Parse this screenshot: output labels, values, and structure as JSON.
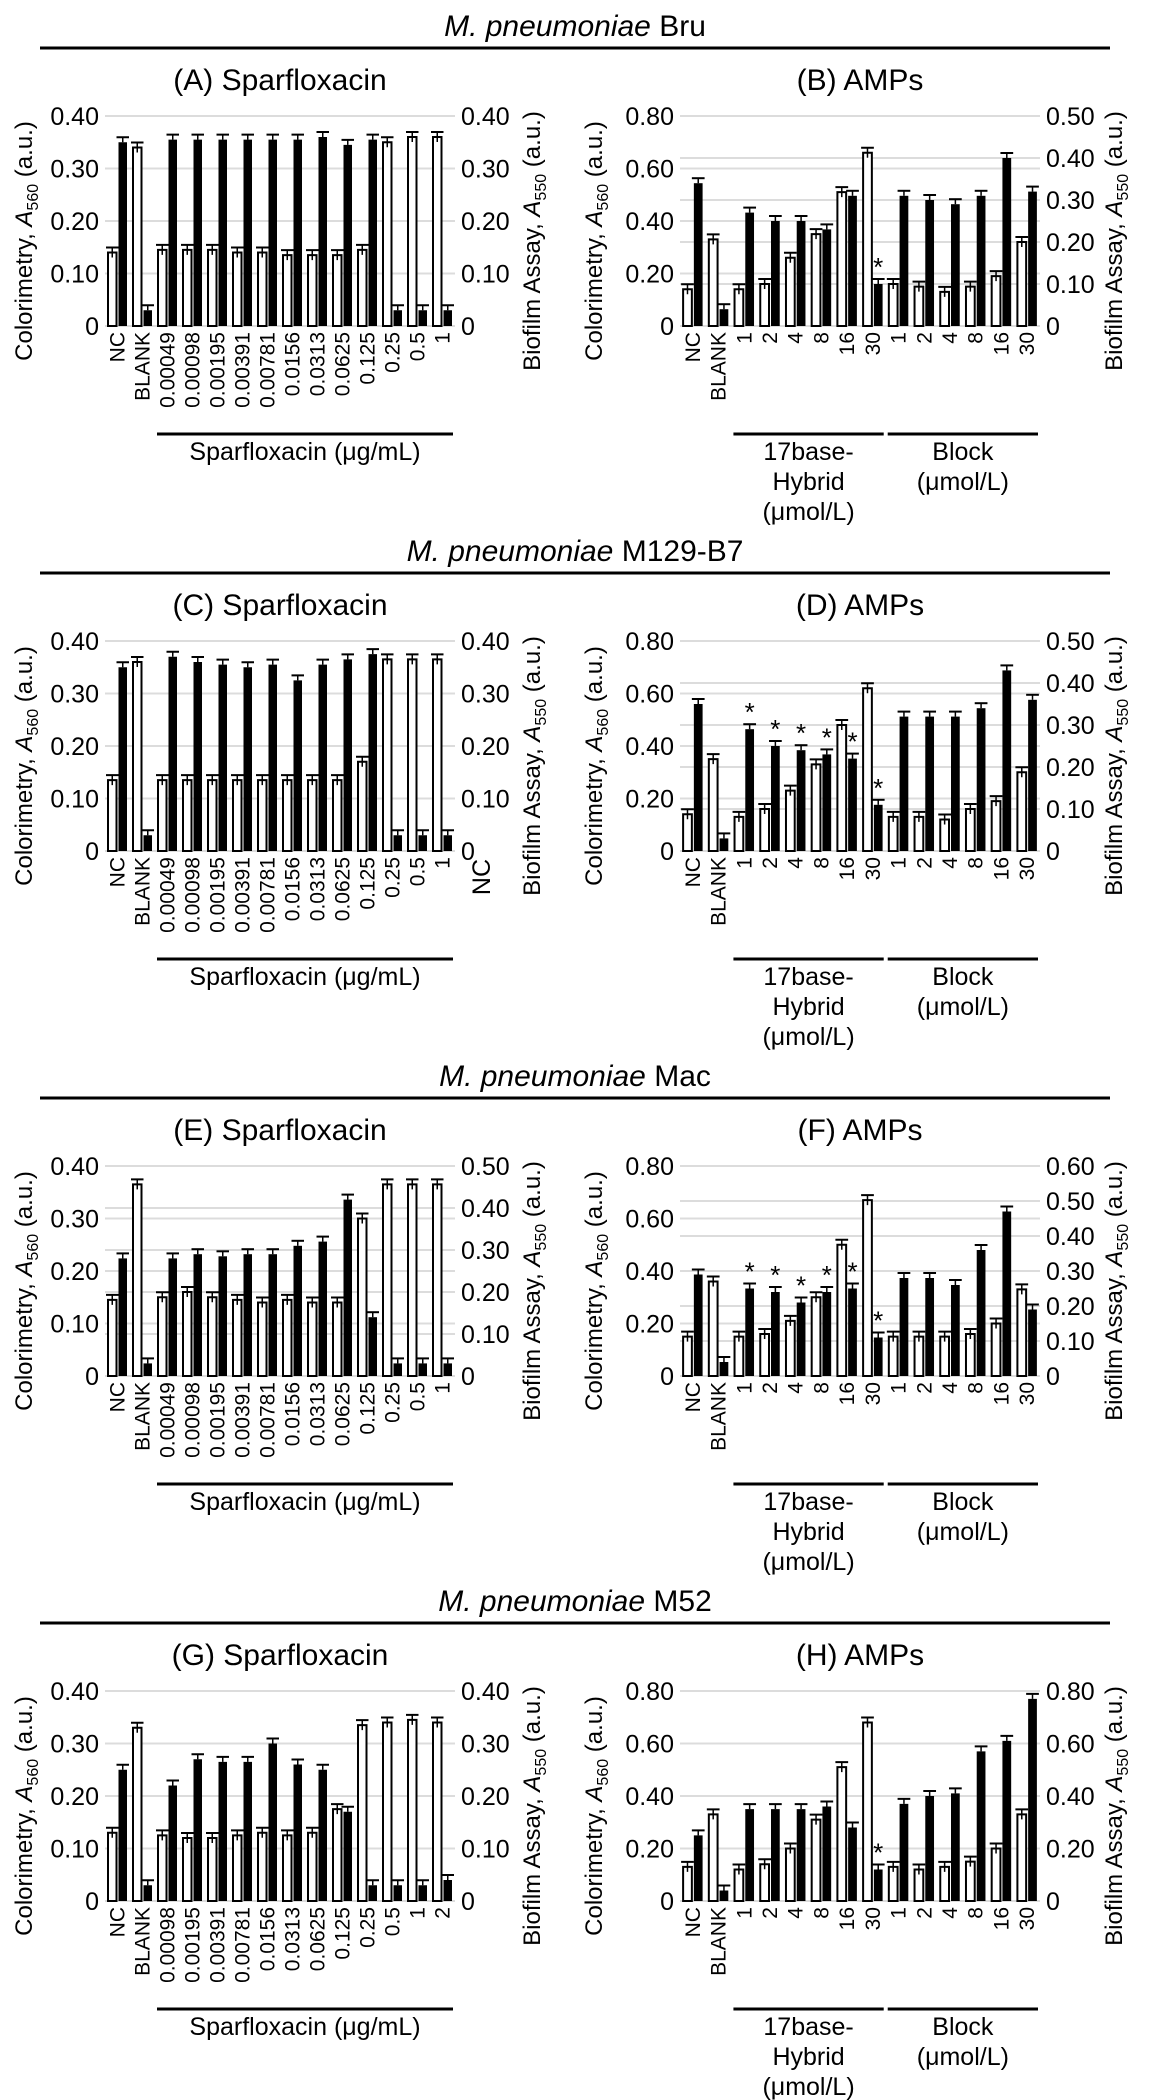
{
  "rows": [
    {
      "species": "M. pneumoniae",
      "strain": "Bru"
    },
    {
      "species": "M. pneumoniae",
      "strain": "M129-B7"
    },
    {
      "species": "M. pneumoniae",
      "strain": "Mac"
    },
    {
      "species": "M. pneumoniae",
      "strain": "M52"
    }
  ],
  "colors": {
    "colorimetry_fill": "#ffffff",
    "biofilm_fill": "#000000",
    "grid": "#dcdcdc",
    "line": "#000000"
  },
  "chart_data": [
    {
      "panel": "A",
      "type": "bar",
      "title": "(A) Sparfloxacin",
      "categories": [
        "NC",
        "BLANK",
        "0.00049",
        "0.00098",
        "0.00195",
        "0.00391",
        "0.00781",
        "0.0156",
        "0.0313",
        "0.0625",
        "0.125",
        "0.25",
        "0.5",
        "1"
      ],
      "series": [
        {
          "name": "Colorimetry",
          "axis": "left",
          "values": [
            0.14,
            0.34,
            0.145,
            0.145,
            0.145,
            0.14,
            0.14,
            0.135,
            0.135,
            0.135,
            0.145,
            0.35,
            0.36,
            0.36
          ]
        },
        {
          "name": "Biofilm Assay",
          "axis": "right",
          "values": [
            0.35,
            0.03,
            0.355,
            0.355,
            0.355,
            0.355,
            0.355,
            0.355,
            0.36,
            0.345,
            0.355,
            0.03,
            0.03,
            0.03
          ]
        }
      ],
      "ylabel_left": {
        "text": "Colorimetry, ",
        "sym": "A",
        "sub": "560",
        "unit": " (a.u.)"
      },
      "ylabel_right": {
        "text": "Biofilm Assay, ",
        "sym": "A",
        "sub": "550",
        "unit": " (a.u.)"
      },
      "ylim_left": [
        0,
        0.4
      ],
      "yticks_left": [
        "0",
        "0.10",
        "0.20",
        "0.30",
        "0.40"
      ],
      "ylim_right": [
        0,
        0.4
      ],
      "yticks_right": [
        "0",
        "0.10",
        "0.20",
        "0.30",
        "0.40"
      ],
      "groups": [
        {
          "lines": [
            "Sparfloxacin (μg/mL)"
          ],
          "from": 2,
          "to": 13
        }
      ],
      "significant": [],
      "grid": true
    },
    {
      "panel": "B",
      "type": "bar",
      "title": "(B) AMPs",
      "categories": [
        "NC",
        "BLANK",
        "1",
        "2",
        "4",
        "8",
        "16",
        "30",
        "1",
        "2",
        "4",
        "8",
        "16",
        "30"
      ],
      "series": [
        {
          "name": "Colorimetry",
          "axis": "left",
          "values": [
            0.14,
            0.33,
            0.14,
            0.16,
            0.26,
            0.35,
            0.51,
            0.66,
            0.16,
            0.15,
            0.13,
            0.15,
            0.19,
            0.32
          ]
        },
        {
          "name": "Biofilm Assay",
          "axis": "right",
          "values": [
            0.34,
            0.04,
            0.27,
            0.25,
            0.25,
            0.23,
            0.31,
            0.1,
            0.31,
            0.3,
            0.29,
            0.31,
            0.4,
            0.32
          ]
        }
      ],
      "ylabel_left": {
        "text": "Colorimetry, ",
        "sym": "A",
        "sub": "560",
        "unit": " (a.u.)"
      },
      "ylabel_right": {
        "text": "Biofilm Assay, ",
        "sym": "A",
        "sub": "550",
        "unit": " (a.u.)"
      },
      "ylim_left": [
        0,
        0.8
      ],
      "yticks_left": [
        "0",
        "0.20",
        "0.40",
        "0.60",
        "0.80"
      ],
      "ylim_right": [
        0,
        0.5
      ],
      "yticks_right": [
        "0",
        "0.10",
        "0.20",
        "0.30",
        "0.40",
        "0.50"
      ],
      "groups": [
        {
          "lines": [
            "17base-",
            "Hybrid",
            "(μmol/L)"
          ],
          "from": 2,
          "to": 7
        },
        {
          "lines": [
            "Block",
            "(μmol/L)"
          ],
          "from": 8,
          "to": 13
        }
      ],
      "significant": [
        7
      ],
      "significance_mark": "*",
      "grid": true
    },
    {
      "panel": "C",
      "type": "bar",
      "title": "(C) Sparfloxacin",
      "categories": [
        "NC",
        "BLANK",
        "0.00049",
        "0.00098",
        "0.00195",
        "0.00391",
        "0.00781",
        "0.0156",
        "0.0313",
        "0.0625",
        "0.125",
        "0.25",
        "0.5",
        "1"
      ],
      "series": [
        {
          "name": "Colorimetry",
          "axis": "left",
          "values": [
            0.135,
            0.36,
            0.135,
            0.135,
            0.135,
            0.135,
            0.135,
            0.135,
            0.135,
            0.135,
            0.17,
            0.365,
            0.365,
            0.365
          ]
        },
        {
          "name": "Biofilm Assay",
          "axis": "right",
          "values": [
            0.35,
            0.03,
            0.37,
            0.36,
            0.355,
            0.35,
            0.355,
            0.325,
            0.355,
            0.365,
            0.375,
            0.03,
            0.03,
            0.03
          ]
        }
      ],
      "ylabel_left": {
        "text": "Colorimetry, ",
        "sym": "A",
        "sub": "560",
        "unit": " (a.u.)"
      },
      "ylabel_right": {
        "text": "Biofilm Assay, ",
        "sym": "A",
        "sub": "550",
        "unit": " (a.u.)"
      },
      "ylim_left": [
        0,
        0.4
      ],
      "yticks_left": [
        "0",
        "0.10",
        "0.20",
        "0.30",
        "0.40"
      ],
      "ylim_right": [
        0,
        0.4
      ],
      "yticks_right": [
        "0",
        "0.10",
        "0.20",
        "0.30",
        "0.40"
      ],
      "groups": [
        {
          "lines": [
            "Sparfloxacin (μg/mL)"
          ],
          "from": 2,
          "to": 13
        }
      ],
      "significant": [],
      "stray_label": "NC",
      "grid": true
    },
    {
      "panel": "D",
      "type": "bar",
      "title": "(D) AMPs",
      "categories": [
        "NC",
        "BLANK",
        "1",
        "2",
        "4",
        "8",
        "16",
        "30",
        "1",
        "2",
        "4",
        "8",
        "16",
        "30"
      ],
      "series": [
        {
          "name": "Colorimetry",
          "axis": "left",
          "values": [
            0.14,
            0.35,
            0.13,
            0.16,
            0.23,
            0.33,
            0.48,
            0.62,
            0.13,
            0.13,
            0.12,
            0.16,
            0.19,
            0.3
          ]
        },
        {
          "name": "Biofilm Assay",
          "axis": "right",
          "values": [
            0.35,
            0.03,
            0.29,
            0.25,
            0.24,
            0.23,
            0.22,
            0.11,
            0.32,
            0.32,
            0.32,
            0.34,
            0.43,
            0.36
          ]
        }
      ],
      "ylabel_left": {
        "text": "Colorimetry, ",
        "sym": "A",
        "sub": "560",
        "unit": " (a.u.)"
      },
      "ylabel_right": {
        "text": "Biofilm Assay, ",
        "sym": "A",
        "sub": "550",
        "unit": " (a.u.)"
      },
      "ylim_left": [
        0,
        0.8
      ],
      "yticks_left": [
        "0",
        "0.20",
        "0.40",
        "0.60",
        "0.80"
      ],
      "ylim_right": [
        0,
        0.5
      ],
      "yticks_right": [
        "0",
        "0.10",
        "0.20",
        "0.30",
        "0.40",
        "0.50"
      ],
      "groups": [
        {
          "lines": [
            "17base-",
            "Hybrid",
            "(μmol/L)"
          ],
          "from": 2,
          "to": 7
        },
        {
          "lines": [
            "Block",
            "(μmol/L)"
          ],
          "from": 8,
          "to": 13
        }
      ],
      "significant": [
        2,
        3,
        4,
        5,
        6,
        7
      ],
      "significance_mark": "*",
      "grid": true
    },
    {
      "panel": "E",
      "type": "bar",
      "title": "(E) Sparfloxacin",
      "categories": [
        "NC",
        "BLANK",
        "0.00049",
        "0.00098",
        "0.00195",
        "0.00391",
        "0.00781",
        "0.0156",
        "0.0313",
        "0.0625",
        "0.125",
        "0.25",
        "0.5",
        "1"
      ],
      "series": [
        {
          "name": "Colorimetry",
          "axis": "left",
          "values": [
            0.145,
            0.365,
            0.15,
            0.16,
            0.15,
            0.145,
            0.14,
            0.145,
            0.14,
            0.14,
            0.3,
            0.365,
            0.365,
            0.365
          ]
        },
        {
          "name": "Biofilm Assay",
          "axis": "right",
          "values": [
            0.28,
            0.03,
            0.28,
            0.29,
            0.285,
            0.29,
            0.29,
            0.31,
            0.32,
            0.42,
            0.14,
            0.03,
            0.03,
            0.03
          ]
        }
      ],
      "ylabel_left": {
        "text": "Colorimetry, ",
        "sym": "A",
        "sub": "560",
        "unit": " (a.u.)"
      },
      "ylabel_right": {
        "text": "Biofilm Assay, ",
        "sym": "A",
        "sub": "550",
        "unit": " (a.u.)"
      },
      "ylim_left": [
        0,
        0.4
      ],
      "yticks_left": [
        "0",
        "0.10",
        "0.20",
        "0.30",
        "0.40"
      ],
      "ylim_right": [
        0,
        0.5
      ],
      "yticks_right": [
        "0",
        "0.10",
        "0.20",
        "0.30",
        "0.40",
        "0.50"
      ],
      "groups": [
        {
          "lines": [
            "Sparfloxacin (μg/mL)"
          ],
          "from": 2,
          "to": 13
        }
      ],
      "significant": [],
      "grid": true
    },
    {
      "panel": "F",
      "type": "bar",
      "title": "(F) AMPs",
      "categories": [
        "NC",
        "BLANK",
        "1",
        "2",
        "4",
        "8",
        "16",
        "30",
        "1",
        "2",
        "4",
        "8",
        "16",
        "30"
      ],
      "series": [
        {
          "name": "Colorimetry",
          "axis": "left",
          "values": [
            0.15,
            0.36,
            0.15,
            0.16,
            0.21,
            0.3,
            0.5,
            0.67,
            0.15,
            0.15,
            0.15,
            0.16,
            0.2,
            0.33
          ]
        },
        {
          "name": "Biofilm Assay",
          "axis": "right",
          "values": [
            0.29,
            0.04,
            0.25,
            0.24,
            0.21,
            0.24,
            0.25,
            0.11,
            0.28,
            0.28,
            0.26,
            0.36,
            0.47,
            0.19
          ]
        }
      ],
      "ylabel_left": {
        "text": "Colorimetry, ",
        "sym": "A",
        "sub": "560",
        "unit": " (a.u.)"
      },
      "ylabel_right": {
        "text": "Biofilm Assay, ",
        "sym": "A",
        "sub": "550",
        "unit": " (a.u.)"
      },
      "ylim_left": [
        0,
        0.8
      ],
      "yticks_left": [
        "0",
        "0.20",
        "0.40",
        "0.60",
        "0.80"
      ],
      "ylim_right": [
        0,
        0.6
      ],
      "yticks_right": [
        "0",
        "0.10",
        "0.20",
        "0.30",
        "0.40",
        "0.50",
        "0.60"
      ],
      "groups": [
        {
          "lines": [
            "17base-",
            "Hybrid",
            "(μmol/L)"
          ],
          "from": 2,
          "to": 7
        },
        {
          "lines": [
            "Block",
            "(μmol/L)"
          ],
          "from": 8,
          "to": 13
        }
      ],
      "significant": [
        2,
        3,
        4,
        5,
        6,
        7
      ],
      "significance_mark": "*",
      "grid": true
    },
    {
      "panel": "G",
      "type": "bar",
      "title": "(G) Sparfloxacin",
      "categories": [
        "NC",
        "BLANK",
        "0.00098",
        "0.00195",
        "0.00391",
        "0.00781",
        "0.0156",
        "0.0313",
        "0.0625",
        "0.125",
        "0.25",
        "0.5",
        "1",
        "2"
      ],
      "series": [
        {
          "name": "Colorimetry",
          "axis": "left",
          "values": [
            0.13,
            0.33,
            0.125,
            0.12,
            0.12,
            0.125,
            0.13,
            0.125,
            0.13,
            0.175,
            0.335,
            0.34,
            0.345,
            0.34
          ]
        },
        {
          "name": "Biofilm Assay",
          "axis": "right",
          "values": [
            0.25,
            0.03,
            0.22,
            0.27,
            0.265,
            0.265,
            0.3,
            0.26,
            0.25,
            0.17,
            0.03,
            0.03,
            0.03,
            0.04
          ]
        }
      ],
      "ylabel_left": {
        "text": "Colorimetry, ",
        "sym": "A",
        "sub": "560",
        "unit": " (a.u.)"
      },
      "ylabel_right": {
        "text": "Biofilm Assay, ",
        "sym": "A",
        "sub": "550",
        "unit": " (a.u.)"
      },
      "ylim_left": [
        0,
        0.4
      ],
      "yticks_left": [
        "0",
        "0.10",
        "0.20",
        "0.30",
        "0.40"
      ],
      "ylim_right": [
        0,
        0.4
      ],
      "yticks_right": [
        "0",
        "0.10",
        "0.20",
        "0.30",
        "0.40"
      ],
      "groups": [
        {
          "lines": [
            "Sparfloxacin (μg/mL)"
          ],
          "from": 2,
          "to": 13
        }
      ],
      "significant": [],
      "grid": true
    },
    {
      "panel": "H",
      "type": "bar",
      "title": "(H) AMPs",
      "categories": [
        "NC",
        "BLANK",
        "1",
        "2",
        "4",
        "8",
        "16",
        "30",
        "1",
        "2",
        "4",
        "8",
        "16",
        "30"
      ],
      "series": [
        {
          "name": "Colorimetry",
          "axis": "left",
          "values": [
            0.13,
            0.33,
            0.12,
            0.14,
            0.2,
            0.31,
            0.51,
            0.68,
            0.13,
            0.12,
            0.13,
            0.15,
            0.2,
            0.33
          ]
        },
        {
          "name": "Biofilm Assay",
          "axis": "right",
          "values": [
            0.25,
            0.04,
            0.35,
            0.35,
            0.35,
            0.36,
            0.28,
            0.12,
            0.37,
            0.4,
            0.41,
            0.57,
            0.61,
            0.77
          ]
        }
      ],
      "ylabel_left": {
        "text": "Colorimetry, ",
        "sym": "A",
        "sub": "560",
        "unit": " (a.u.)"
      },
      "ylabel_right": {
        "text": "Biofilm Assay, ",
        "sym": "A",
        "sub": "550",
        "unit": " (a.u.)"
      },
      "ylim_left": [
        0,
        0.8
      ],
      "yticks_left": [
        "0",
        "0.20",
        "0.40",
        "0.60",
        "0.80"
      ],
      "ylim_right": [
        0,
        0.8
      ],
      "yticks_right": [
        "0",
        "0.20",
        "0.40",
        "0.60",
        "0.80"
      ],
      "groups": [
        {
          "lines": [
            "17base-",
            "Hybrid",
            "(μmol/L)"
          ],
          "from": 2,
          "to": 7
        },
        {
          "lines": [
            "Block",
            "(μmol/L)"
          ],
          "from": 8,
          "to": 13
        }
      ],
      "significant": [
        7
      ],
      "significance_mark": "*",
      "grid": true
    }
  ]
}
